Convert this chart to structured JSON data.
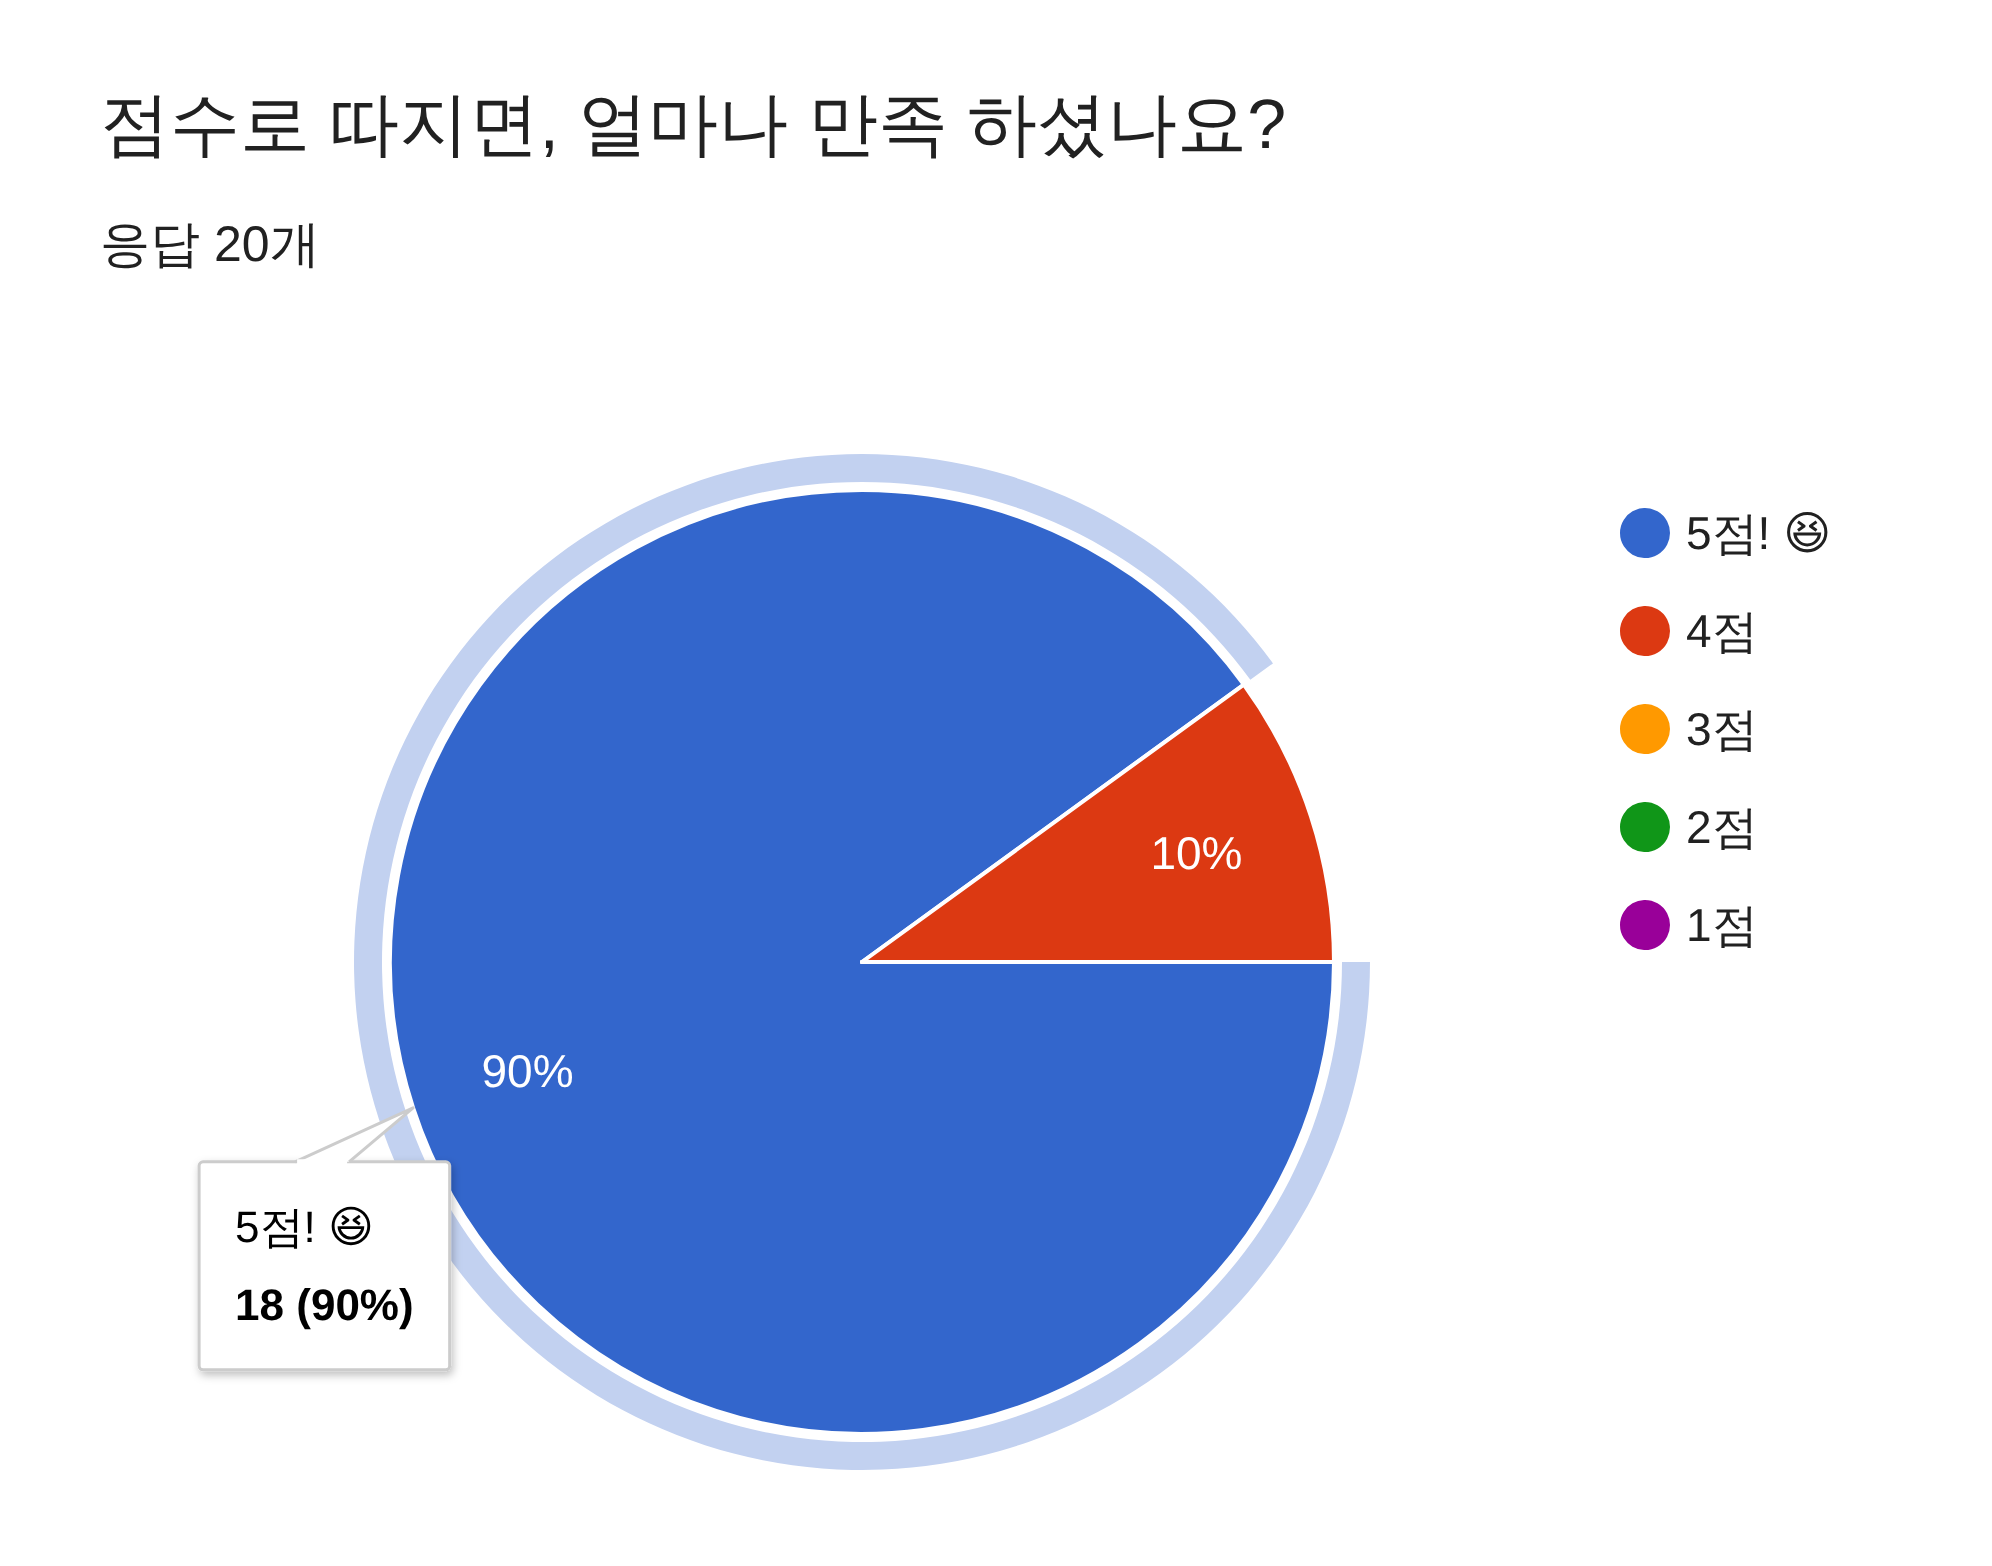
{
  "chart_data": {
    "type": "pie",
    "title": "점수로 따지면, 얼마나 만족 하셨나요?",
    "subtitle": "응답 20개",
    "categories": [
      "5점! 😆",
      "4점",
      "3점",
      "2점",
      "1점"
    ],
    "values": [
      90,
      10,
      0,
      0,
      0
    ],
    "colors": [
      "#3366cc",
      "#dc3912",
      "#ff9900",
      "#109618",
      "#990099"
    ],
    "value_labels": [
      "90%",
      "10%",
      null,
      null,
      null
    ],
    "legend": "right",
    "annotations": [
      {
        "text": "5점! 😆\n18 (90%)",
        "x": "5점! 😆"
      }
    ]
  }
}
